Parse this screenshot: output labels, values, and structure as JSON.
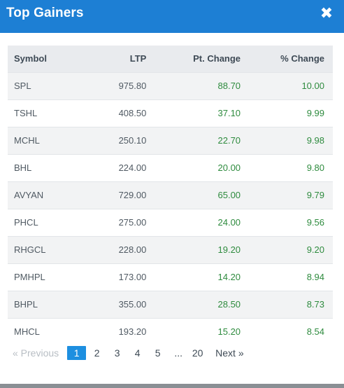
{
  "header": {
    "title": "Top Gainers",
    "close_glyph": "✖"
  },
  "table": {
    "columns": [
      "Symbol",
      "LTP",
      "Pt. Change",
      "% Change"
    ],
    "rows": [
      {
        "symbol": "SPL",
        "ltp": "975.80",
        "pt_change": "88.70",
        "pct_change": "10.00"
      },
      {
        "symbol": "TSHL",
        "ltp": "408.50",
        "pt_change": "37.10",
        "pct_change": "9.99"
      },
      {
        "symbol": "MCHL",
        "ltp": "250.10",
        "pt_change": "22.70",
        "pct_change": "9.98"
      },
      {
        "symbol": "BHL",
        "ltp": "224.00",
        "pt_change": "20.00",
        "pct_change": "9.80"
      },
      {
        "symbol": "AVYAN",
        "ltp": "729.00",
        "pt_change": "65.00",
        "pct_change": "9.79"
      },
      {
        "symbol": "PHCL",
        "ltp": "275.00",
        "pt_change": "24.00",
        "pct_change": "9.56"
      },
      {
        "symbol": "RHGCL",
        "ltp": "228.00",
        "pt_change": "19.20",
        "pct_change": "9.20"
      },
      {
        "symbol": "PMHPL",
        "ltp": "173.00",
        "pt_change": "14.20",
        "pct_change": "8.94"
      },
      {
        "symbol": "BHPL",
        "ltp": "355.00",
        "pt_change": "28.50",
        "pct_change": "8.73"
      },
      {
        "symbol": "MHCL",
        "ltp": "193.20",
        "pt_change": "15.20",
        "pct_change": "8.54"
      }
    ]
  },
  "pagination": {
    "previous": "« Previous",
    "pages": [
      "1",
      "2",
      "3",
      "4",
      "5"
    ],
    "ellipsis": "...",
    "last_page": "20",
    "next": "Next »",
    "current": "1"
  },
  "colors": {
    "header_bg": "#1d7fd4",
    "positive": "#2e8b3e",
    "active_page": "#1d8fe0"
  }
}
